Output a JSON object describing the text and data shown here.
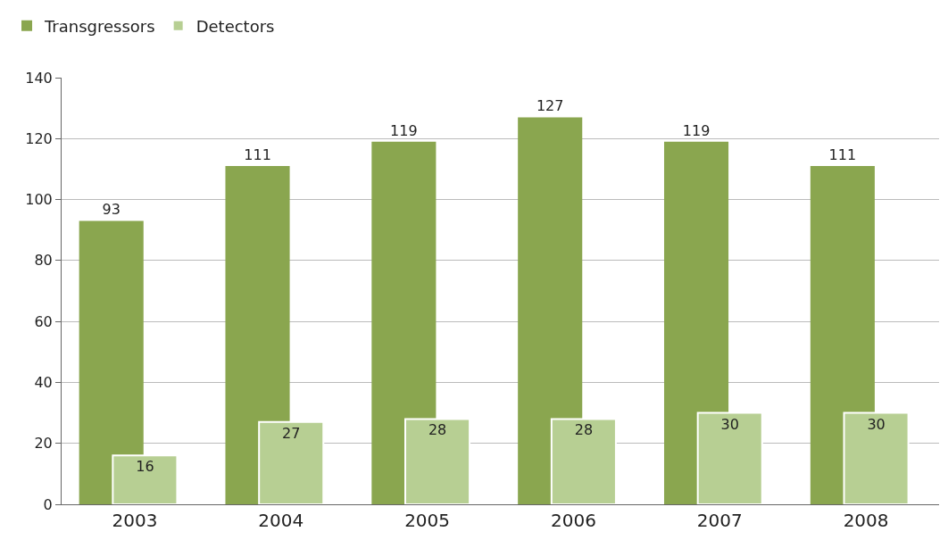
{
  "chart_data": {
    "type": "bar",
    "categories": [
      "2003",
      "2004",
      "2005",
      "2006",
      "2007",
      "2008"
    ],
    "series": [
      {
        "name": "Transgressors",
        "color": "#8aa64f",
        "values": [
          93,
          111,
          119,
          127,
          119,
          111
        ]
      },
      {
        "name": "Detectors",
        "color": "#b7cf93",
        "values": [
          16,
          27,
          28,
          28,
          30,
          30
        ]
      }
    ],
    "ylim": [
      0,
      140
    ],
    "yticks": [
      0,
      20,
      40,
      60,
      80,
      100,
      120,
      140
    ],
    "grid": "y",
    "legend": "top left",
    "data_labels": true
  }
}
